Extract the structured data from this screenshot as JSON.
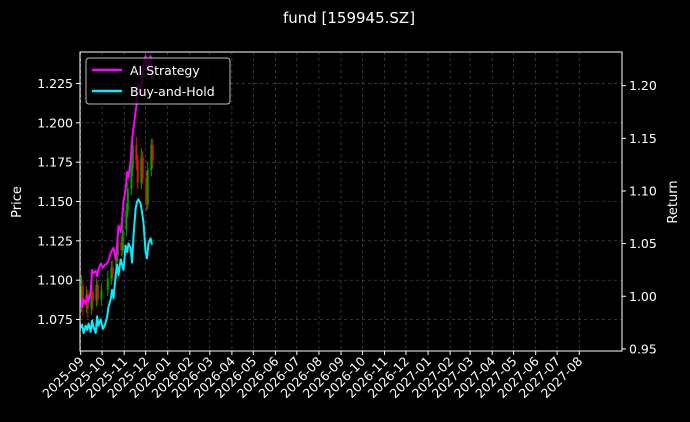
{
  "chart_data": {
    "type": "line",
    "title": "fund [159945.SZ]",
    "ylabel": "Price",
    "y2label": "Return",
    "legend_placement": "top-left",
    "grid": true,
    "background": "#000000",
    "x_ticks": [
      "2025-09",
      "2025-10",
      "2025-11",
      "2025-12",
      "2026-01",
      "2026-02",
      "2026-03",
      "2026-04",
      "2026-05",
      "2026-06",
      "2026-07",
      "2026-08",
      "2026-09",
      "2026-10",
      "2026-11",
      "2026-12",
      "2027-01",
      "2027-02",
      "2027-03",
      "2027-04",
      "2027-05",
      "2027-06",
      "2027-07",
      "2027-08"
    ],
    "y_left_ticks": [
      "1.075",
      "1.100",
      "1.125",
      "1.150",
      "1.175",
      "1.200",
      "1.225"
    ],
    "y_right_ticks": [
      "0.95",
      "1.00",
      "1.05",
      "1.10",
      "1.15",
      "1.20"
    ],
    "ylim_left": [
      1.055,
      1.245
    ],
    "ylim_right": [
      0.948,
      1.232
    ],
    "xlim": [
      "2025-08-31",
      "2027-09-30"
    ],
    "series": [
      {
        "name": "AI Strategy",
        "color": "#ff00ff",
        "axis": "right",
        "x": [
          "2025-09-01",
          "2025-09-03",
          "2025-09-05",
          "2025-09-08",
          "2025-09-10",
          "2025-09-12",
          "2025-09-15",
          "2025-09-17",
          "2025-09-19",
          "2025-09-22",
          "2025-09-24",
          "2025-09-26",
          "2025-09-29",
          "2025-10-02",
          "2025-10-05",
          "2025-10-08",
          "2025-10-10",
          "2025-10-13",
          "2025-10-15",
          "2025-10-17",
          "2025-10-20",
          "2025-10-22",
          "2025-10-24",
          "2025-10-27",
          "2025-10-29",
          "2025-10-31",
          "2025-11-03",
          "2025-11-05",
          "2025-11-07",
          "2025-11-10",
          "2025-11-12",
          "2025-11-14",
          "2025-11-17",
          "2025-11-19",
          "2025-11-21",
          "2025-11-24",
          "2025-11-26",
          "2025-11-28",
          "2025-12-01",
          "2025-12-03",
          "2025-12-05",
          "2025-12-08",
          "2025-12-10"
        ],
        "values": [
          0.998,
          0.99,
          0.997,
          0.993,
          1.0,
          0.995,
          1.005,
          1.025,
          1.022,
          1.024,
          1.019,
          1.026,
          1.031,
          1.027,
          1.03,
          1.031,
          1.034,
          1.041,
          1.044,
          1.046,
          1.035,
          1.048,
          1.067,
          1.061,
          1.072,
          1.09,
          1.101,
          1.118,
          1.113,
          1.128,
          1.148,
          1.16,
          1.175,
          1.185,
          1.202,
          1.193,
          1.205,
          1.22,
          1.228,
          1.215,
          1.22,
          1.228,
          1.205
        ]
      },
      {
        "name": "Buy-and-Hold",
        "color": "#00f0ff",
        "axis": "right",
        "x": [
          "2025-09-01",
          "2025-09-03",
          "2025-09-05",
          "2025-09-08",
          "2025-09-10",
          "2025-09-12",
          "2025-09-15",
          "2025-09-17",
          "2025-09-19",
          "2025-09-22",
          "2025-09-24",
          "2025-09-26",
          "2025-09-29",
          "2025-10-02",
          "2025-10-05",
          "2025-10-08",
          "2025-10-10",
          "2025-10-13",
          "2025-10-15",
          "2025-10-17",
          "2025-10-20",
          "2025-10-22",
          "2025-10-24",
          "2025-10-27",
          "2025-10-29",
          "2025-10-31",
          "2025-11-03",
          "2025-11-05",
          "2025-11-07",
          "2025-11-10",
          "2025-11-12",
          "2025-11-14",
          "2025-11-17",
          "2025-11-19",
          "2025-11-21",
          "2025-11-24",
          "2025-11-26",
          "2025-11-28",
          "2025-12-01",
          "2025-12-03",
          "2025-12-05",
          "2025-12-08",
          "2025-12-10"
        ],
        "values": [
          0.97,
          0.973,
          0.965,
          0.972,
          0.968,
          0.974,
          0.966,
          0.977,
          0.971,
          0.965,
          0.981,
          0.972,
          0.978,
          0.969,
          0.973,
          0.98,
          0.99,
          0.997,
          1.006,
          0.998,
          1.02,
          1.03,
          1.02,
          1.035,
          1.03,
          1.025,
          1.048,
          1.042,
          1.05,
          1.046,
          1.032,
          1.057,
          1.083,
          1.09,
          1.092,
          1.088,
          1.08,
          1.07,
          1.042,
          1.036,
          1.05,
          1.055,
          1.049
        ]
      },
      {
        "name": "",
        "type": "candlestick",
        "axis": "left",
        "up_color": "#00a000",
        "down_color": "#e01010",
        "candles": [
          {
            "x": "2025-09-02",
            "o": 1.088,
            "c": 1.096,
            "h": 1.103,
            "l": 1.08
          },
          {
            "x": "2025-09-04",
            "o": 1.096,
            "c": 1.084,
            "h": 1.1,
            "l": 1.077
          },
          {
            "x": "2025-09-09",
            "o": 1.084,
            "c": 1.091,
            "h": 1.096,
            "l": 1.079
          },
          {
            "x": "2025-09-11",
            "o": 1.091,
            "c": 1.082,
            "h": 1.094,
            "l": 1.076
          },
          {
            "x": "2025-09-16",
            "o": 1.082,
            "c": 1.093,
            "h": 1.098,
            "l": 1.078
          },
          {
            "x": "2025-09-18",
            "o": 1.093,
            "c": 1.087,
            "h": 1.096,
            "l": 1.081
          },
          {
            "x": "2025-09-23",
            "o": 1.087,
            "c": 1.097,
            "h": 1.101,
            "l": 1.083
          },
          {
            "x": "2025-09-25",
            "o": 1.097,
            "c": 1.088,
            "h": 1.1,
            "l": 1.084
          },
          {
            "x": "2025-09-30",
            "o": 1.088,
            "c": 1.094,
            "h": 1.098,
            "l": 1.084
          },
          {
            "x": "2025-10-09",
            "o": 1.094,
            "c": 1.101,
            "h": 1.106,
            "l": 1.09
          },
          {
            "x": "2025-10-14",
            "o": 1.101,
            "c": 1.108,
            "h": 1.112,
            "l": 1.097
          },
          {
            "x": "2025-10-16",
            "o": 1.108,
            "c": 1.104,
            "h": 1.113,
            "l": 1.1
          },
          {
            "x": "2025-10-21",
            "o": 1.104,
            "c": 1.116,
            "h": 1.12,
            "l": 1.101
          },
          {
            "x": "2025-10-23",
            "o": 1.116,
            "c": 1.124,
            "h": 1.127,
            "l": 1.112
          },
          {
            "x": "2025-10-28",
            "o": 1.124,
            "c": 1.119,
            "h": 1.128,
            "l": 1.115
          },
          {
            "x": "2025-10-30",
            "o": 1.119,
            "c": 1.132,
            "h": 1.136,
            "l": 1.116
          },
          {
            "x": "2025-11-04",
            "o": 1.132,
            "c": 1.144,
            "h": 1.149,
            "l": 1.128
          },
          {
            "x": "2025-11-06",
            "o": 1.144,
            "c": 1.158,
            "h": 1.162,
            "l": 1.14
          },
          {
            "x": "2025-11-11",
            "o": 1.158,
            "c": 1.171,
            "h": 1.176,
            "l": 1.154
          },
          {
            "x": "2025-11-13",
            "o": 1.171,
            "c": 1.186,
            "h": 1.19,
            "l": 1.166
          },
          {
            "x": "2025-11-18",
            "o": 1.186,
            "c": 1.176,
            "h": 1.191,
            "l": 1.17
          },
          {
            "x": "2025-11-20",
            "o": 1.176,
            "c": 1.162,
            "h": 1.18,
            "l": 1.158
          },
          {
            "x": "2025-11-25",
            "o": 1.162,
            "c": 1.178,
            "h": 1.184,
            "l": 1.158
          },
          {
            "x": "2025-11-27",
            "o": 1.178,
            "c": 1.165,
            "h": 1.182,
            "l": 1.161
          },
          {
            "x": "2025-12-02",
            "o": 1.165,
            "c": 1.148,
            "h": 1.17,
            "l": 1.144
          },
          {
            "x": "2025-12-04",
            "o": 1.148,
            "c": 1.17,
            "h": 1.175,
            "l": 1.145
          },
          {
            "x": "2025-12-09",
            "o": 1.17,
            "c": 1.186,
            "h": 1.19,
            "l": 1.166
          },
          {
            "x": "2025-12-11",
            "o": 1.186,
            "c": 1.176,
            "h": 1.19,
            "l": 1.171
          }
        ]
      }
    ]
  }
}
